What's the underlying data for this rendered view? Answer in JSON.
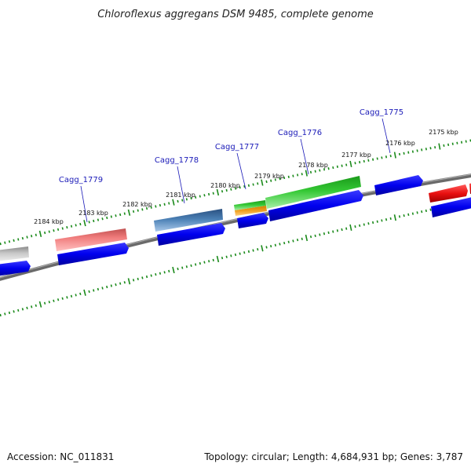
{
  "title": "Chloroflexus aggregans DSM 9485, complete genome",
  "accession": "Accession: NC_011831",
  "summary": "Topology: circular; Length: 4,684,931 bp; Genes: 3,787",
  "kbp_labels": [
    "2175 kbp",
    "2176 kbp",
    "2177 kbp",
    "2178 kbp",
    "2179 kbp",
    "2180 kbp",
    "2181 kbp",
    "2182 kbp",
    "2183 kbp",
    "2184 kbp"
  ],
  "gene_labels": [
    "Cagg_1775",
    "Cagg_1776",
    "Cagg_1777",
    "Cagg_1778",
    "Cagg_1779"
  ],
  "colors": {
    "backbone": "#7a7a7a",
    "ticks": "#1a8a1a",
    "cds": "#0000ee",
    "gene_label": "#1a1ab8",
    "feature_red": "#e82020",
    "feature_pink": "#f08080",
    "feature_steelblue": "#4a7fb4",
    "feature_green": "#30c030",
    "feature_orange": "#f0a020",
    "feature_gray": "#c8c8c8"
  }
}
